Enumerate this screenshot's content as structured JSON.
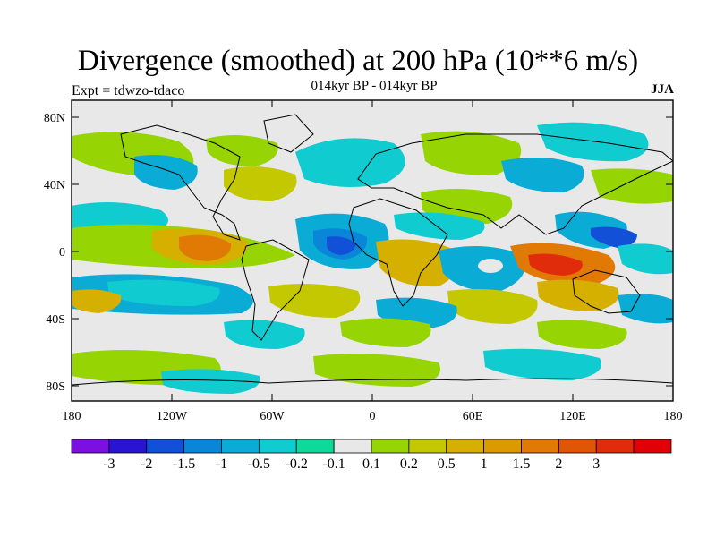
{
  "title": "Divergence (smoothed) at 200 hPa (10**6 m/s)",
  "subtitle_left": "Expt = tdwzo-tdaco",
  "subtitle_center": "014kyr BP - 014kyr BP",
  "subtitle_right": "JJA",
  "lat_ticks": [
    "80N",
    "40N",
    "0",
    "40S",
    "80S"
  ],
  "lon_ticks": [
    "180",
    "120W",
    "60W",
    "0",
    "60E",
    "120E",
    "180"
  ],
  "colorbar": {
    "colors": [
      "#7b10e0",
      "#2b13d4",
      "#1250d8",
      "#0a86d8",
      "#0aacd6",
      "#10ccd0",
      "#0ed89a",
      "#e8e8e8",
      "#96d404",
      "#c4c800",
      "#d6b000",
      "#dc9a00",
      "#e07a04",
      "#e05606",
      "#e02c0a",
      "#e00008"
    ],
    "labels": [
      "-3",
      "-2",
      "-1.5",
      "-1",
      "-0.5",
      "-0.2",
      "-0.1",
      "0.1",
      "0.2",
      "0.5",
      "1",
      "1.5",
      "2",
      "3"
    ]
  }
}
